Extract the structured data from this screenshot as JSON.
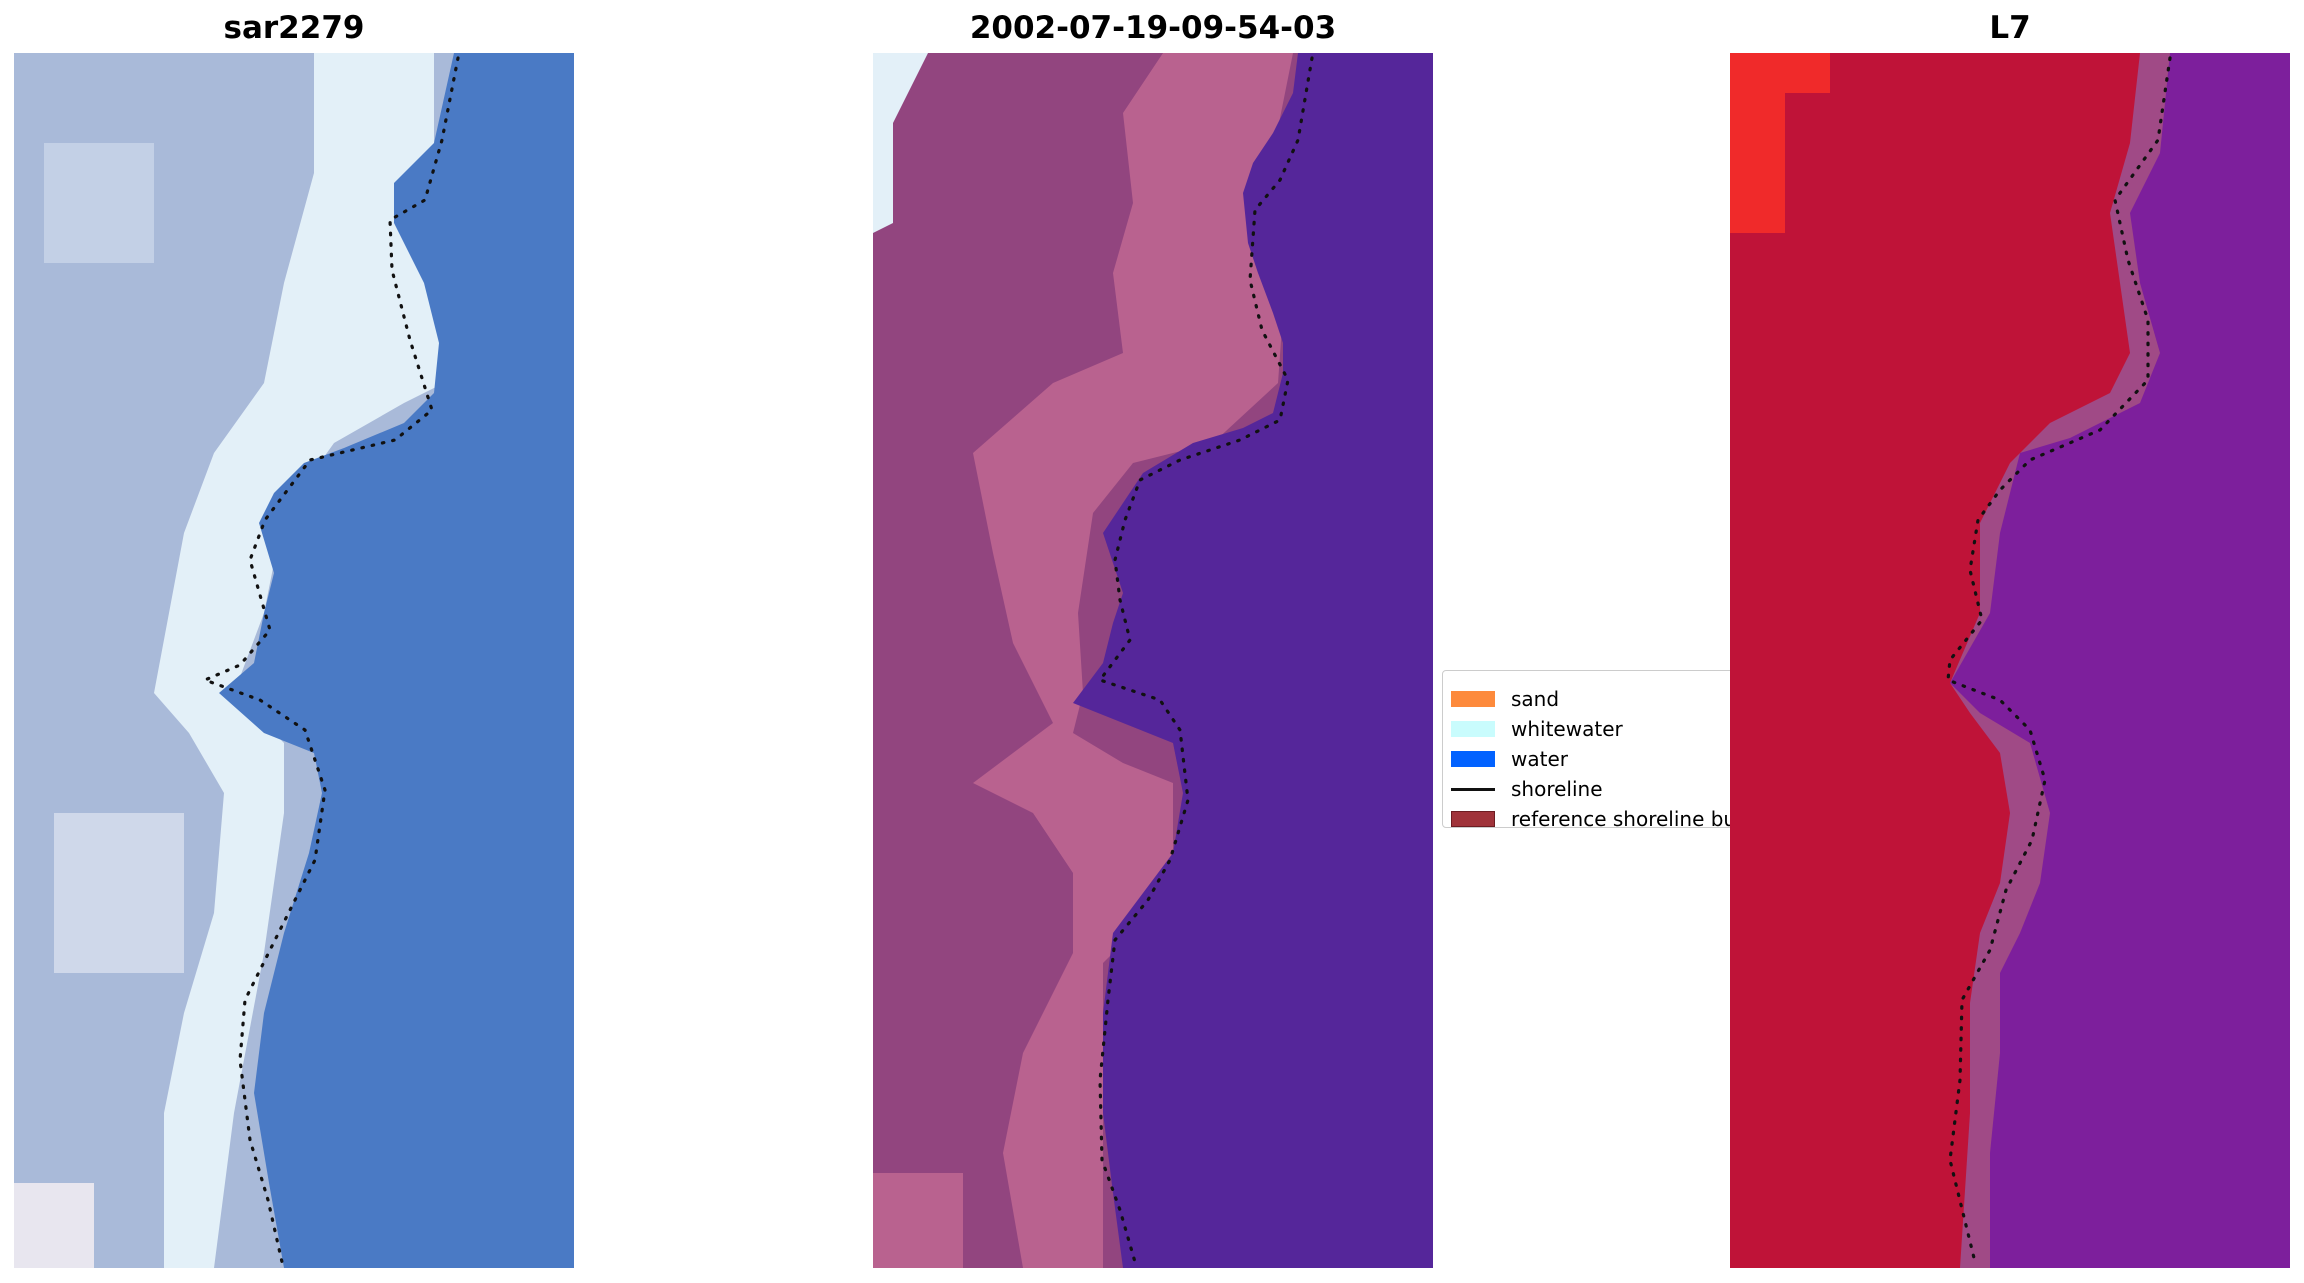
{
  "panels": [
    {
      "title": "sar2279"
    },
    {
      "title": "2002-07-19-09-54-03"
    },
    {
      "title": "L7"
    }
  ],
  "legend": {
    "items": [
      {
        "label": "sand",
        "color": "#fd8a3c",
        "kind": "patch"
      },
      {
        "label": "whitewater",
        "color": "#c9fcfd",
        "kind": "patch"
      },
      {
        "label": "water",
        "color": "#0262ff",
        "kind": "patch"
      },
      {
        "label": "shoreline",
        "color": "#111111",
        "kind": "line"
      },
      {
        "label": "reference shoreline buffer",
        "color": "#a0333a",
        "kind": "patch"
      }
    ]
  },
  "colors": {
    "rgb_land": "#a9bad9",
    "rgb_water": "#4a7ac5",
    "rgb_whitewater": "#e3f0f8",
    "class_land": "#92457f",
    "class_buffer": "#b9628f",
    "class_water": "#55269a",
    "ndwi_land": "#bf1338",
    "ndwi_water": "#7d1f9c",
    "ndwi_buffer": "#a04a86"
  }
}
